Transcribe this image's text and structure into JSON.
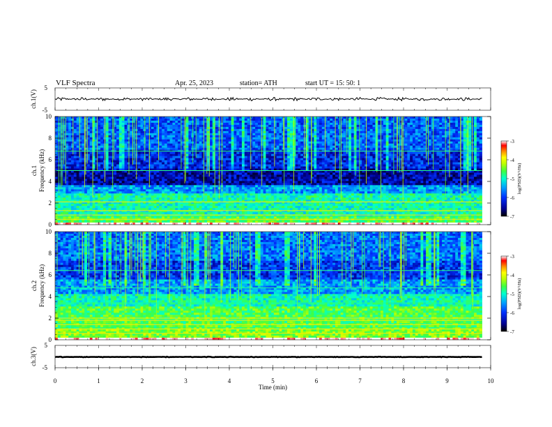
{
  "header": {
    "title": "VLF  Spectra",
    "date": "Apr. 25, 2023",
    "station": "station= ATH",
    "start": "start  UT  =   15: 50: 1"
  },
  "chart_data": {
    "type": "heatmap",
    "x_axis": {
      "label": "Time  (min)",
      "range": [
        0,
        10
      ],
      "ticks": [
        "0",
        "1",
        "2",
        "3",
        "4",
        "5",
        "6",
        "7",
        "8",
        "9",
        "10"
      ]
    },
    "panels": [
      {
        "id": "ch1-waveform",
        "kind": "line",
        "ylabel": "ch.1(V)",
        "ylim": [
          -5,
          5
        ],
        "yticks": [
          "5",
          "-5"
        ],
        "data_end_min": 9.8,
        "baseline_v": 0.0,
        "noise_amplitude_v": 0.8
      },
      {
        "id": "ch1-spectrogram",
        "kind": "heatmap",
        "ylabel": "ch.1\nFrequency  (kHz)",
        "ylim": [
          0,
          10
        ],
        "yticks": [
          "0",
          "2",
          "4",
          "6",
          "8",
          "10"
        ],
        "data_end_min": 9.8,
        "colorbar": {
          "label": "log(PSD)(V²/Hz)",
          "range": [
            -7,
            -3
          ],
          "ticks": [
            "-3",
            "-4",
            "-5",
            "-6",
            "-7"
          ]
        },
        "bands": [
          {
            "f": [
              0.0,
              0.25
            ],
            "level": 1.0
          },
          {
            "f": [
              0.25,
              0.8
            ],
            "level": 0.5
          },
          {
            "f": [
              0.8,
              2.8
            ],
            "level": 0.42
          },
          {
            "f": [
              2.8,
              3.7
            ],
            "level": 0.3
          },
          {
            "f": [
              3.7,
              5.2
            ],
            "level": 0.12
          },
          {
            "f": [
              5.2,
              7.0
            ],
            "level": 0.18
          },
          {
            "f": [
              7.0,
              10.0
            ],
            "level": 0.24
          }
        ],
        "lines_khz": [
          0.5,
          0.9,
          1.3,
          2.1,
          5.0,
          6.8
        ]
      },
      {
        "id": "ch2-spectrogram",
        "kind": "heatmap",
        "ylabel": "ch.2\nFrequency  (kHz)",
        "ylim": [
          0,
          10
        ],
        "yticks": [
          "0",
          "2",
          "4",
          "6",
          "8",
          "10"
        ],
        "data_end_min": 9.8,
        "colorbar": {
          "label": "log(PSD)(V²/Hz)",
          "range": [
            -7,
            -3
          ],
          "ticks": [
            "-3",
            "-4",
            "-5",
            "-6",
            "-7"
          ]
        },
        "bands": [
          {
            "f": [
              0.0,
              0.25
            ],
            "level": 1.0
          },
          {
            "f": [
              0.25,
              1.0
            ],
            "level": 0.55
          },
          {
            "f": [
              1.0,
              3.0
            ],
            "level": 0.5
          },
          {
            "f": [
              3.0,
              4.2
            ],
            "level": 0.42
          },
          {
            "f": [
              4.2,
              5.5
            ],
            "level": 0.3
          },
          {
            "f": [
              5.5,
              7.3
            ],
            "level": 0.2
          },
          {
            "f": [
              7.3,
              10.0
            ],
            "level": 0.26
          }
        ],
        "lines_khz": [
          0.6,
          1.0,
          1.4,
          1.8,
          2.0,
          3.4,
          4.8,
          6.4
        ]
      },
      {
        "id": "ch3-waveform",
        "kind": "line",
        "ylabel": "ch.3(V)",
        "ylim": [
          -5,
          5
        ],
        "yticks": [
          "5",
          "-5"
        ],
        "data_end_min": 9.8,
        "baseline_v": -0.2,
        "noise_amplitude_v": 0.15
      }
    ],
    "colormap": [
      "#000000",
      "#000090",
      "#0030ff",
      "#00a0ff",
      "#00ffd0",
      "#40ff40",
      "#c0ff00",
      "#ffff00",
      "#ff9000",
      "#ff0000",
      "#ffffff"
    ]
  }
}
